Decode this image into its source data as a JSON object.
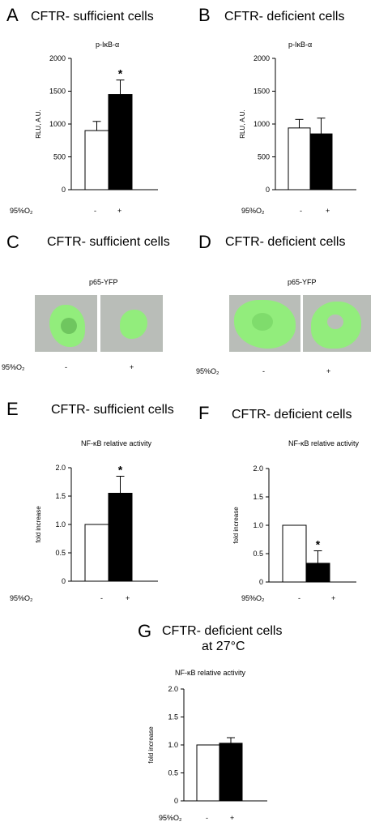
{
  "panels": {
    "A": {
      "letter": "A",
      "title": "CFTR- sufficient cells",
      "subtitle": "p-IκB-α"
    },
    "B": {
      "letter": "B",
      "title": "CFTR- deficient cells",
      "subtitle": "p-IκB-α"
    },
    "C": {
      "letter": "C",
      "title": "CFTR- sufficient cells",
      "subtitle": "p65-YFP"
    },
    "D": {
      "letter": "D",
      "title": "CFTR- deficient cells",
      "subtitle": "p65-YFP"
    },
    "E": {
      "letter": "E",
      "title": "CFTR- sufficient cells",
      "subtitle": "NF-κB relative activity"
    },
    "F": {
      "letter": "F",
      "title": "CFTR- deficient cells",
      "subtitle": "NF-κB relative activity"
    },
    "G": {
      "letter": "G",
      "title": "CFTR- deficient cells",
      "title2": "at 27°C",
      "subtitle": "NF-κB relative activity"
    }
  },
  "treatment_label": "95%O₂",
  "minus": "-",
  "plus": "+",
  "colors": {
    "control": "#ffffff",
    "treated": "#000000",
    "fluorescence": "#8fef78"
  },
  "chart_data": [
    {
      "id": "A",
      "type": "bar",
      "title": "p-IκB-α",
      "ylabel": "RLU, A.U.",
      "ylim": [
        0,
        2000
      ],
      "yticks": [
        0,
        500,
        1000,
        1500,
        2000
      ],
      "categories": [
        "-",
        "+"
      ],
      "values": [
        900,
        1450
      ],
      "errors": [
        140,
        220
      ],
      "significance": [
        "",
        "*"
      ]
    },
    {
      "id": "B",
      "type": "bar",
      "title": "p-IκB-α",
      "ylabel": "RLU, A.U.",
      "ylim": [
        0,
        2000
      ],
      "yticks": [
        0,
        500,
        1000,
        1500,
        2000
      ],
      "categories": [
        "-",
        "+"
      ],
      "values": [
        940,
        850
      ],
      "errors": [
        130,
        240
      ],
      "significance": [
        "",
        ""
      ]
    },
    {
      "id": "E",
      "type": "bar",
      "title": "NF-κB relative activity",
      "ylabel": "fold increase",
      "ylim": [
        0,
        2.0
      ],
      "yticks": [
        0,
        0.5,
        1.0,
        1.5,
        2.0
      ],
      "categories": [
        "-",
        "+"
      ],
      "values": [
        1.0,
        1.55
      ],
      "errors": [
        0,
        0.3
      ],
      "significance": [
        "",
        "*"
      ]
    },
    {
      "id": "F",
      "type": "bar",
      "title": "NF-κB relative activity",
      "ylabel": "fold increase",
      "ylim": [
        0,
        2.0
      ],
      "yticks": [
        0,
        0.5,
        1.0,
        1.5,
        2.0
      ],
      "categories": [
        "-",
        "+"
      ],
      "values": [
        1.0,
        0.33
      ],
      "errors": [
        0,
        0.22
      ],
      "significance": [
        "",
        "*"
      ]
    },
    {
      "id": "G",
      "type": "bar",
      "title": "NF-κB relative activity",
      "ylabel": "fold increase",
      "ylim": [
        0,
        2.0
      ],
      "yticks": [
        0,
        0.5,
        1.0,
        1.5,
        2.0
      ],
      "categories": [
        "-",
        "+"
      ],
      "values": [
        1.0,
        1.03
      ],
      "errors": [
        0,
        0.1
      ],
      "significance": [
        "",
        ""
      ]
    }
  ]
}
